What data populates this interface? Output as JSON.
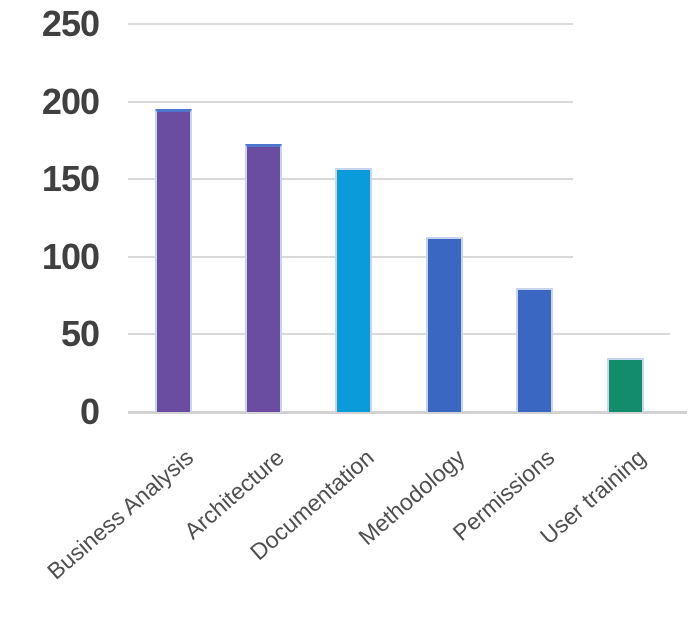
{
  "chart_data": {
    "type": "bar",
    "title": "",
    "xlabel": "",
    "ylabel": "",
    "categories": [
      "Business Analysis",
      "Architecture",
      "Documentation",
      "Methodology",
      "Permissions",
      "User training"
    ],
    "values": [
      195,
      173,
      157,
      113,
      80,
      35
    ],
    "bar_colors": [
      "#6a4ca0",
      "#6a4ca0",
      "#0a9cd9",
      "#3a67c1",
      "#3a67c1",
      "#128c6a"
    ],
    "ylim": [
      0,
      250
    ],
    "ytick_step": 50,
    "yticks": [
      "0",
      "50",
      "100",
      "150",
      "200",
      "250"
    ],
    "grid": true,
    "legend": false,
    "x_label_rotation_deg": 41
  },
  "colors": {
    "gridline": "#d9d9d9",
    "axis_line": "#d2d2d2",
    "y_tick_text": "#404040",
    "x_tick_text": "#4f4f4f",
    "bar_border": "#c6d4ef",
    "purple_bar_top_border": "#4e79ce",
    "background": "#ffffff"
  }
}
